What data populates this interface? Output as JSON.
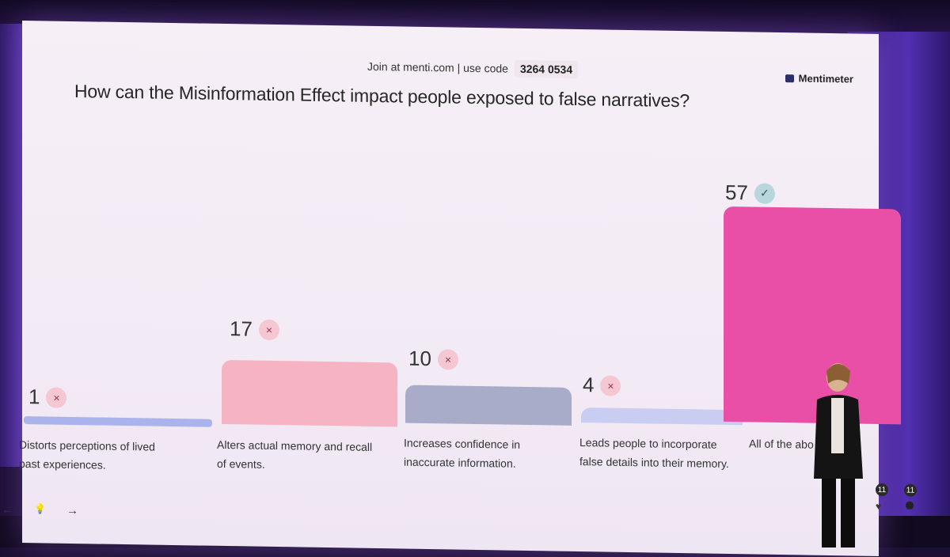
{
  "join": {
    "text": "Join at menti.com | use code",
    "code": "3264 0534"
  },
  "brand": {
    "name": "Mentimeter"
  },
  "question": "How can the Misinformation Effect impact people exposed to false narratives?",
  "chart_data": {
    "type": "bar",
    "categories": [
      "Distorts perceptions of lived past experiences.",
      "Alters actual memory and recall of events.",
      "Increases confidence in inaccurate information.",
      "Leads people to incorporate false details into their memory.",
      "All of the abo"
    ],
    "values": [
      1,
      17,
      10,
      4,
      57
    ],
    "correct": [
      false,
      false,
      false,
      false,
      true
    ],
    "colors": [
      "#aab3ec",
      "#f6b3c3",
      "#a9acc9",
      "#c9cdf2",
      "#ea4fa8"
    ]
  },
  "labels": {
    "opt1_line1": "Distorts perceptions of lived",
    "opt1_line2": "past experiences.",
    "opt2_line1": "Alters actual memory and recall",
    "opt2_line2": "of events.",
    "opt3_line1": "Increases confidence in",
    "opt3_line2": "inaccurate information.",
    "opt4_line1": "Leads people to incorporate",
    "opt4_line2": "false details into their memory.",
    "opt5_line1": "All of the abo"
  },
  "counts": {
    "c1": "1",
    "c2": "17",
    "c3": "10",
    "c4": "4",
    "c5": "57"
  },
  "marks": {
    "wrong": "×",
    "right": "✓"
  },
  "nav": {
    "prev": "←",
    "hint": "💡",
    "next": "→"
  },
  "reactions": {
    "heart_count": "11",
    "cat_count": "11"
  }
}
